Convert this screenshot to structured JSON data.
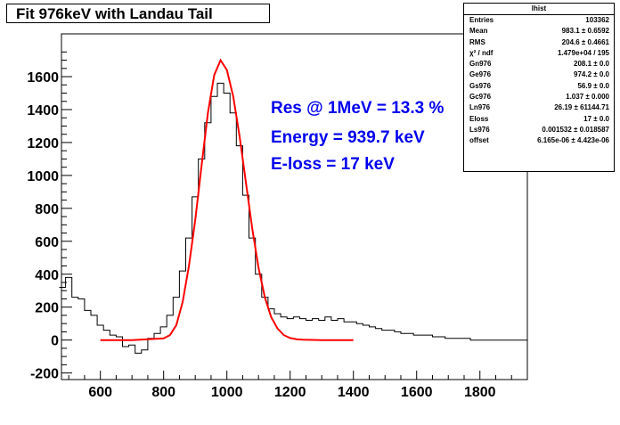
{
  "chart_data": {
    "type": "histogram",
    "title": "Fit 976keV with Landau Tail",
    "xlim": [
      477,
      1950
    ],
    "ylim": [
      -240,
      1860
    ],
    "x_ticks": [
      600,
      800,
      1000,
      1200,
      1400,
      1600,
      1800
    ],
    "y_ticks": [
      -200,
      0,
      200,
      400,
      600,
      800,
      1000,
      1200,
      1400,
      1600
    ],
    "histogram": {
      "name": "lhist",
      "color": "#000000",
      "points": [
        [
          480,
          320
        ],
        [
          500,
          380
        ],
        [
          520,
          260
        ],
        [
          540,
          250
        ],
        [
          560,
          180
        ],
        [
          580,
          150
        ],
        [
          600,
          90
        ],
        [
          620,
          60
        ],
        [
          640,
          30
        ],
        [
          660,
          20
        ],
        [
          680,
          -40
        ],
        [
          700,
          -30
        ],
        [
          720,
          -80
        ],
        [
          740,
          -60
        ],
        [
          760,
          10
        ],
        [
          780,
          40
        ],
        [
          800,
          80
        ],
        [
          820,
          150
        ],
        [
          840,
          260
        ],
        [
          860,
          420
        ],
        [
          880,
          620
        ],
        [
          900,
          870
        ],
        [
          920,
          1100
        ],
        [
          940,
          1320
        ],
        [
          960,
          1480
        ],
        [
          980,
          1560
        ],
        [
          1000,
          1500
        ],
        [
          1020,
          1380
        ],
        [
          1040,
          1180
        ],
        [
          1060,
          880
        ],
        [
          1080,
          620
        ],
        [
          1100,
          400
        ],
        [
          1120,
          260
        ],
        [
          1140,
          190
        ],
        [
          1160,
          160
        ],
        [
          1180,
          140
        ],
        [
          1200,
          130
        ],
        [
          1220,
          140
        ],
        [
          1240,
          130
        ],
        [
          1260,
          120
        ],
        [
          1280,
          130
        ],
        [
          1300,
          120
        ],
        [
          1320,
          140
        ],
        [
          1340,
          120
        ],
        [
          1360,
          130
        ],
        [
          1380,
          110
        ],
        [
          1400,
          110
        ],
        [
          1420,
          100
        ],
        [
          1440,
          90
        ],
        [
          1460,
          80
        ],
        [
          1480,
          70
        ],
        [
          1500,
          60
        ],
        [
          1520,
          60
        ],
        [
          1540,
          50
        ],
        [
          1560,
          40
        ],
        [
          1580,
          40
        ],
        [
          1600,
          30
        ],
        [
          1620,
          30
        ],
        [
          1640,
          30
        ],
        [
          1660,
          20
        ],
        [
          1680,
          20
        ],
        [
          1700,
          10
        ],
        [
          1720,
          10
        ],
        [
          1740,
          10
        ],
        [
          1760,
          10
        ],
        [
          1780,
          0
        ],
        [
          1800,
          0
        ],
        [
          1820,
          0
        ],
        [
          1840,
          0
        ],
        [
          1860,
          0
        ],
        [
          1880,
          0
        ],
        [
          1900,
          0
        ],
        [
          1920,
          0
        ],
        [
          1940,
          0
        ]
      ]
    },
    "fit": {
      "color": "#ff0000",
      "points": [
        [
          600,
          0
        ],
        [
          700,
          0
        ],
        [
          800,
          10
        ],
        [
          820,
          30
        ],
        [
          840,
          90
        ],
        [
          860,
          230
        ],
        [
          880,
          450
        ],
        [
          900,
          730
        ],
        [
          920,
          1060
        ],
        [
          940,
          1380
        ],
        [
          960,
          1610
        ],
        [
          980,
          1700
        ],
        [
          1000,
          1640
        ],
        [
          1020,
          1480
        ],
        [
          1040,
          1240
        ],
        [
          1060,
          960
        ],
        [
          1080,
          680
        ],
        [
          1100,
          440
        ],
        [
          1120,
          260
        ],
        [
          1140,
          140
        ],
        [
          1160,
          70
        ],
        [
          1180,
          30
        ],
        [
          1200,
          12
        ],
        [
          1220,
          5
        ],
        [
          1240,
          2
        ],
        [
          1300,
          0
        ],
        [
          1350,
          0
        ],
        [
          1400,
          0
        ]
      ]
    },
    "annotations": [
      "Res @ 1MeV  =  13.3 %",
      "Energy  =  939.7 keV",
      "E-loss  =  17 keV"
    ],
    "stats_box": {
      "title": "lhist",
      "rows": [
        {
          "k": "Entries",
          "v": "103362"
        },
        {
          "k": "Mean",
          "v": "983.1 ± 0.6592"
        },
        {
          "k": "RMS",
          "v": "204.6 ± 0.4661"
        },
        {
          "k": "χ² / ndf",
          "v": "1.479e+04 / 195"
        },
        {
          "k": "Gn976",
          "v": "208.1 ± 0.0"
        },
        {
          "k": "Ge976",
          "v": "974.2 ± 0.0"
        },
        {
          "k": "Gs976",
          "v": "56.9 ± 0.0"
        },
        {
          "k": "Gc976",
          "v": "1.037 ± 0.000"
        },
        {
          "k": "Ln976",
          "v": "26.19 ± 61144.71"
        },
        {
          "k": "Eloss",
          "v": "17 ± 0.0"
        },
        {
          "k": "Ls976",
          "v": "0.001532 ± 0.018587"
        },
        {
          "k": "offset",
          "v": "6.165e-06 ± 4.423e-06"
        }
      ]
    }
  }
}
